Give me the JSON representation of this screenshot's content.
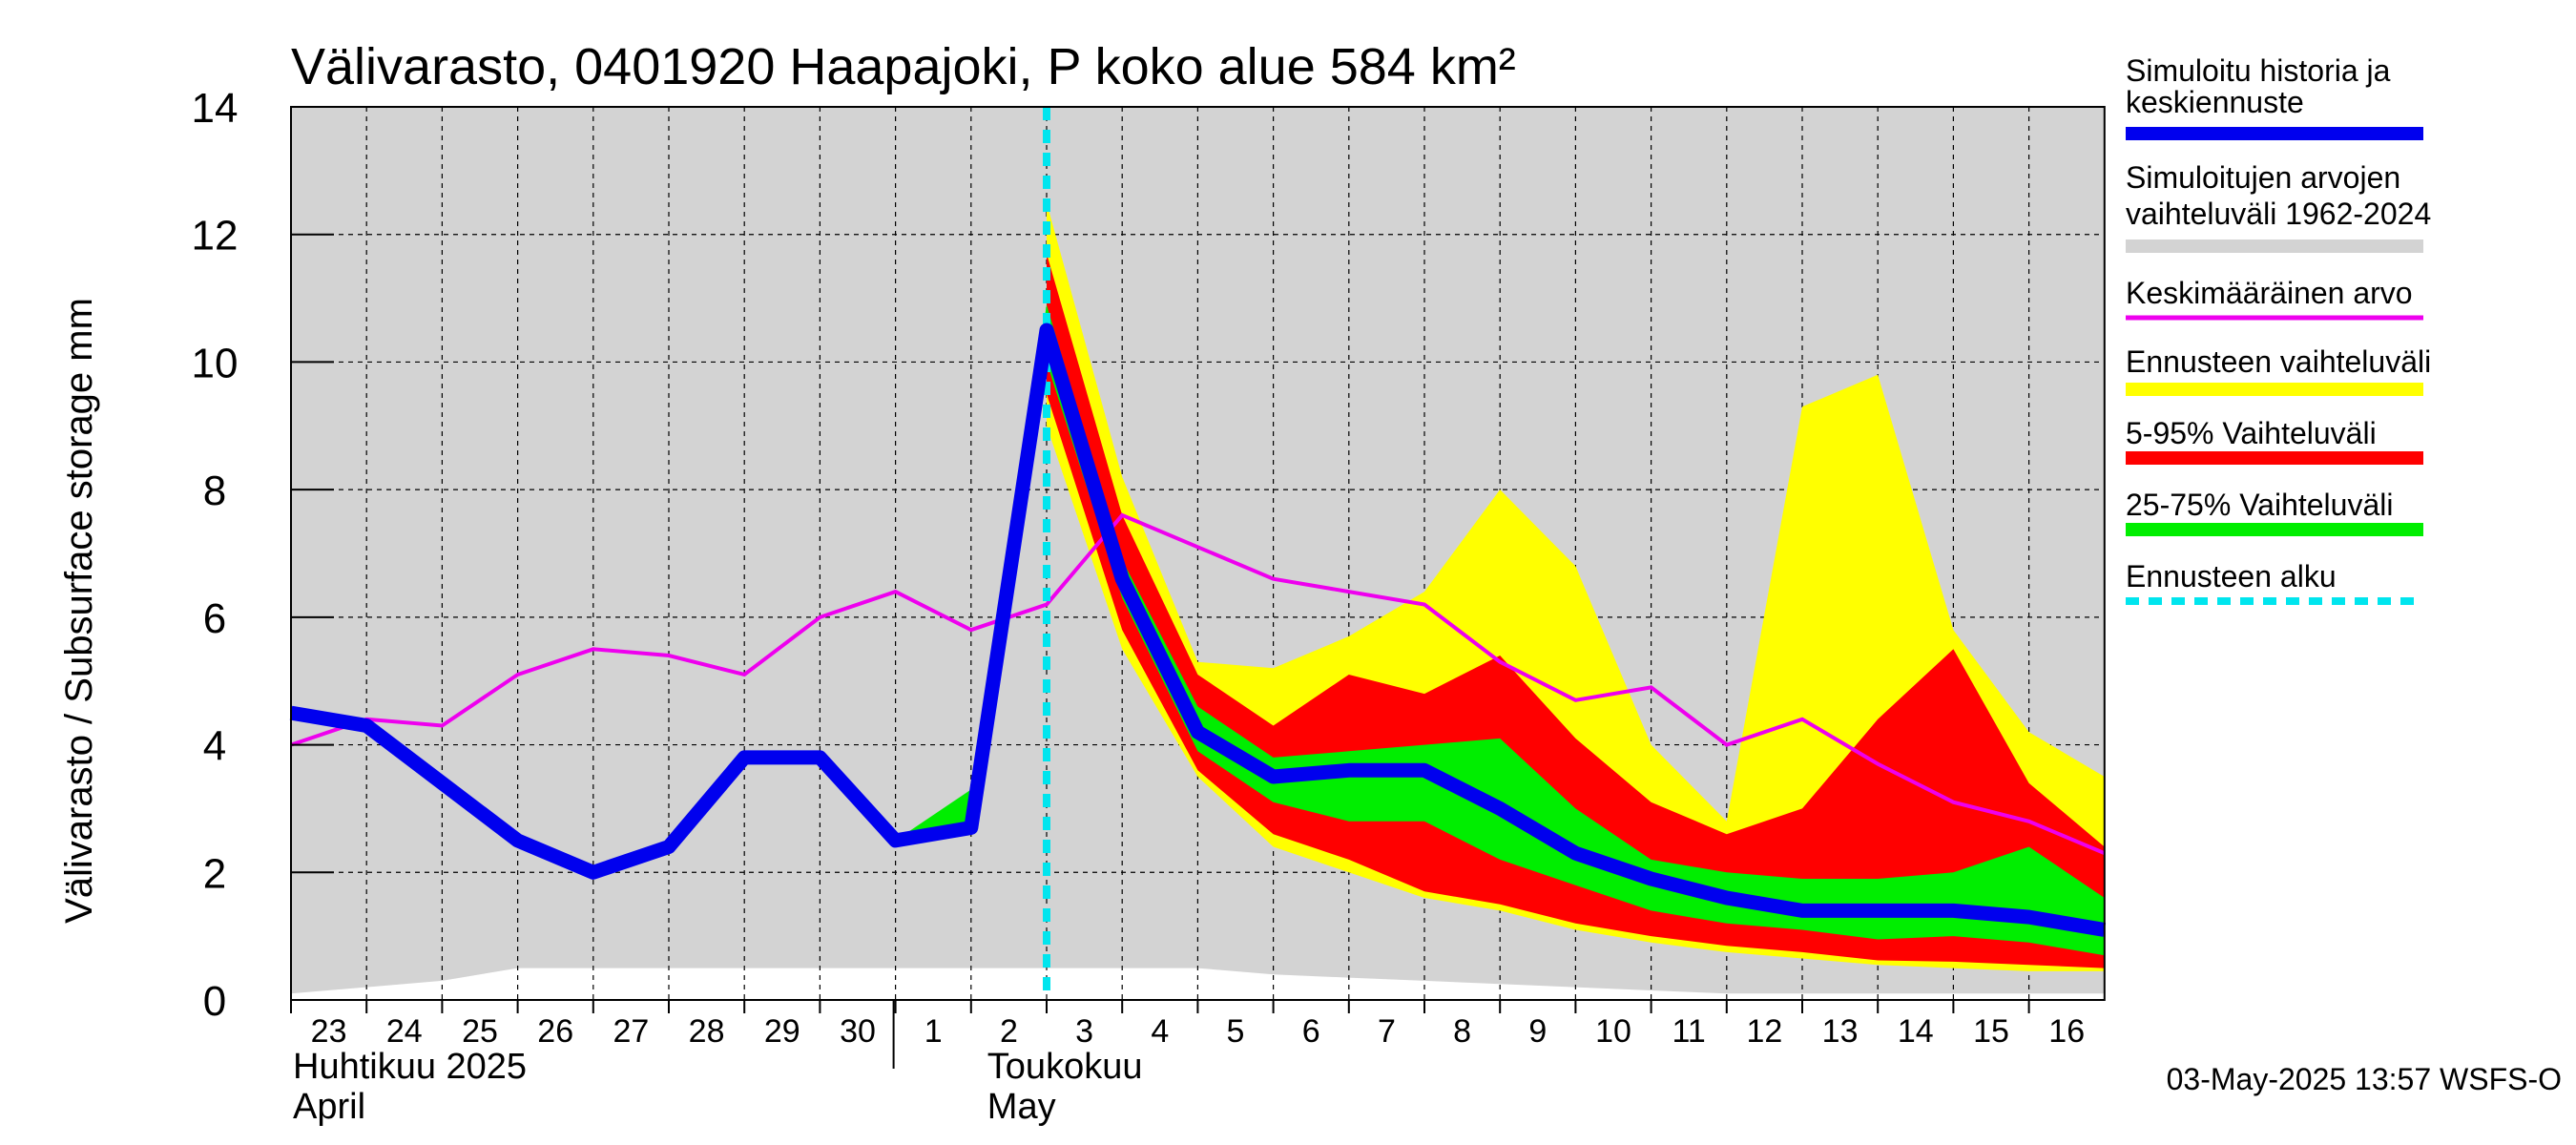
{
  "chart_data": {
    "type": "area",
    "title": "Välivarasto, 0401920 Haapajoki, P koko alue 584 km²",
    "ylabel": "Välivarasto / Subsurface storage  mm",
    "ylim": [
      0,
      14
    ],
    "yticks": [
      0,
      2,
      4,
      6,
      8,
      10,
      12,
      14
    ],
    "grid": true,
    "legend_position": "right",
    "x": [
      "2025-04-23",
      "2025-04-24",
      "2025-04-25",
      "2025-04-26",
      "2025-04-27",
      "2025-04-28",
      "2025-04-29",
      "2025-04-30",
      "2025-05-01",
      "2025-05-02",
      "2025-05-03",
      "2025-05-04",
      "2025-05-05",
      "2025-05-06",
      "2025-05-07",
      "2025-05-08",
      "2025-05-09",
      "2025-05-10",
      "2025-05-11",
      "2025-05-12",
      "2025-05-13",
      "2025-05-14",
      "2025-05-15",
      "2025-05-16",
      "2025-05-17"
    ],
    "xtick_labels": [
      "23",
      "24",
      "25",
      "26",
      "27",
      "28",
      "29",
      "30",
      "1",
      "2",
      "3",
      "4",
      "5",
      "6",
      "7",
      "8",
      "9",
      "10",
      "11",
      "12",
      "13",
      "14",
      "15",
      "16"
    ],
    "month_labels": [
      {
        "line1": "Huhtikuu  2025",
        "line2": "April"
      },
      {
        "line1": "Toukokuu",
        "line2": "May"
      }
    ],
    "forecast_start": "2025-05-03",
    "series": [
      {
        "name": "Simuloitujen arvojen vaihteluväli 1962-2024",
        "color": "#d3d3d3",
        "upper": [
          14,
          14,
          14,
          14,
          14,
          14,
          14,
          14,
          14,
          14,
          14,
          14,
          14,
          14,
          14,
          14,
          14,
          14,
          14,
          14,
          14,
          14,
          14,
          14,
          14
        ],
        "lower": [
          0.1,
          0.2,
          0.3,
          0.5,
          0.5,
          0.5,
          0.5,
          0.5,
          0.5,
          0.5,
          0.5,
          0.5,
          0.5,
          0.4,
          0.35,
          0.3,
          0.25,
          0.2,
          0.15,
          0.1,
          0.1,
          0.1,
          0.1,
          0.1,
          0.1
        ]
      },
      {
        "name": "Ennusteen vaihteluväli",
        "color": "#ffff00",
        "upper": [
          null,
          null,
          null,
          null,
          null,
          null,
          null,
          null,
          null,
          null,
          12.5,
          8.2,
          5.3,
          5.2,
          5.7,
          6.4,
          8.0,
          6.8,
          4.0,
          2.8,
          9.3,
          9.8,
          5.8,
          4.2,
          3.5
        ],
        "lower": [
          null,
          null,
          null,
          null,
          null,
          null,
          null,
          null,
          null,
          null,
          9.0,
          5.5,
          3.5,
          2.4,
          2.0,
          1.6,
          1.4,
          1.1,
          0.9,
          0.75,
          0.65,
          0.55,
          0.5,
          0.45,
          0.45
        ]
      },
      {
        "name": "5-95% Vaihteluväli",
        "color": "#ff0000",
        "upper": [
          null,
          null,
          null,
          null,
          null,
          null,
          null,
          null,
          null,
          null,
          11.7,
          7.6,
          5.1,
          4.3,
          5.1,
          4.8,
          5.4,
          4.1,
          3.1,
          2.6,
          3.0,
          4.4,
          5.5,
          3.4,
          2.4
        ],
        "lower": [
          null,
          null,
          null,
          null,
          null,
          null,
          null,
          null,
          null,
          null,
          9.5,
          5.8,
          3.6,
          2.6,
          2.2,
          1.7,
          1.5,
          1.2,
          1.0,
          0.85,
          0.75,
          0.62,
          0.6,
          0.55,
          0.5
        ]
      },
      {
        "name": "25-75% Vaihteluväli",
        "color": "#00ee00",
        "upper": [
          null,
          null,
          null,
          null,
          null,
          null,
          null,
          null,
          2.5,
          3.3,
          10.9,
          6.9,
          4.6,
          3.8,
          3.9,
          4.0,
          4.1,
          3.0,
          2.2,
          2.0,
          1.9,
          1.9,
          2.0,
          2.4,
          1.6
        ],
        "lower": [
          null,
          null,
          null,
          null,
          null,
          null,
          null,
          null,
          2.5,
          2.7,
          10.0,
          6.3,
          3.9,
          3.1,
          2.8,
          2.8,
          2.2,
          1.8,
          1.4,
          1.2,
          1.1,
          0.95,
          1.0,
          0.9,
          0.7
        ]
      },
      {
        "name": "Keskimääräinen arvo",
        "color": "#ee00ee",
        "values": [
          4.0,
          4.4,
          4.3,
          5.1,
          5.5,
          5.4,
          5.1,
          6.0,
          6.4,
          5.8,
          6.2,
          7.6,
          7.1,
          6.6,
          6.4,
          6.2,
          5.3,
          4.7,
          4.9,
          4.0,
          4.4,
          3.7,
          3.1,
          2.8,
          2.3
        ]
      },
      {
        "name": "Simuloitu historia ja keskiennuste",
        "color": "#0000ee",
        "values": [
          4.5,
          4.3,
          3.4,
          2.5,
          2.0,
          2.4,
          3.8,
          3.8,
          2.5,
          2.7,
          10.5,
          6.6,
          4.2,
          3.5,
          3.6,
          3.6,
          3.0,
          2.3,
          1.9,
          1.6,
          1.4,
          1.4,
          1.4,
          1.3,
          1.1
        ]
      }
    ]
  },
  "legend": [
    {
      "line1": "Simuloitu historia ja",
      "line2": "keskiennuste",
      "color": "#0000ee",
      "style": "solid"
    },
    {
      "line1": "Simuloitujen arvojen",
      "line2": "vaihteluväli 1962-2024",
      "color": "#d3d3d3",
      "style": "solid"
    },
    {
      "line1": "Keskimääräinen arvo",
      "line2": "",
      "color": "#ee00ee",
      "style": "solid"
    },
    {
      "line1": "Ennusteen vaihteluväli",
      "line2": "",
      "color": "#ffff00",
      "style": "solid"
    },
    {
      "line1": "5-95% Vaihteluväli",
      "line2": "",
      "color": "#ff0000",
      "style": "solid"
    },
    {
      "line1": "25-75% Vaihteluväli",
      "line2": "",
      "color": "#00ee00",
      "style": "solid"
    },
    {
      "line1": "Ennusteen alku",
      "line2": "",
      "color": "#00e5ee",
      "style": "dashed"
    }
  ],
  "timestamp": "03-May-2025 13:57 WSFS-O"
}
